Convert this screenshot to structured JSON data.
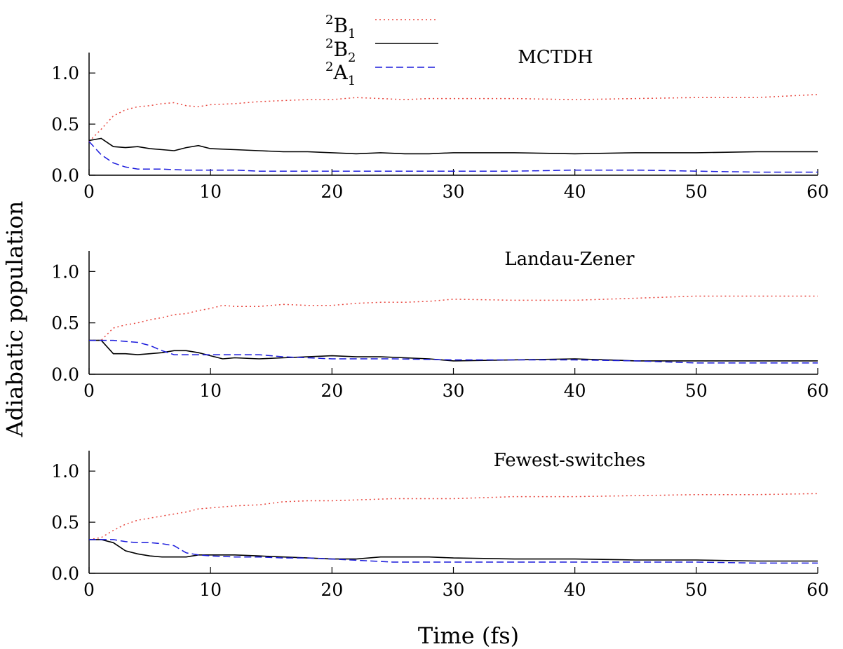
{
  "figure": {
    "ylabel": "Adiabatic population",
    "xlabel": "Time (fs)"
  },
  "legend": {
    "items": [
      {
        "sup": "2",
        "main": "B",
        "sub": "1",
        "color": "#e8473f",
        "dash": "dot"
      },
      {
        "sup": "2",
        "main": "B",
        "sub": "2",
        "color": "#000000",
        "dash": "solid"
      },
      {
        "sup": "2",
        "main": "A",
        "sub": "1",
        "color": "#1a1adc",
        "dash": "dash"
      }
    ]
  },
  "chart_data": [
    {
      "type": "line",
      "title": "MCTDH",
      "xlim": [
        0,
        60
      ],
      "ylim": [
        0,
        1.2
      ],
      "xticks": [
        0,
        10,
        20,
        30,
        40,
        50,
        60
      ],
      "yticks": [
        0.0,
        0.5,
        1.0
      ],
      "xtick_labels": [
        "0",
        "10",
        "20",
        "30",
        "40",
        "50",
        "60"
      ],
      "ytick_labels": [
        "0.0",
        "0.5",
        "1.0"
      ],
      "series": [
        {
          "legend_index": 0,
          "color": "#e8473f",
          "style": "dot",
          "x": [
            0,
            1,
            2,
            3,
            4,
            5,
            6,
            7,
            8,
            9,
            10,
            12,
            14,
            16,
            18,
            20,
            22,
            24,
            26,
            28,
            30,
            35,
            40,
            45,
            50,
            55,
            60
          ],
          "y": [
            0.33,
            0.45,
            0.58,
            0.64,
            0.67,
            0.68,
            0.7,
            0.71,
            0.68,
            0.67,
            0.69,
            0.7,
            0.72,
            0.73,
            0.74,
            0.74,
            0.76,
            0.75,
            0.74,
            0.75,
            0.75,
            0.75,
            0.74,
            0.75,
            0.76,
            0.76,
            0.79
          ]
        },
        {
          "legend_index": 1,
          "color": "#000000",
          "style": "solid",
          "x": [
            0,
            1,
            2,
            3,
            4,
            5,
            6,
            7,
            8,
            9,
            10,
            12,
            14,
            16,
            18,
            20,
            22,
            24,
            26,
            28,
            30,
            35,
            40,
            45,
            50,
            55,
            60
          ],
          "y": [
            0.34,
            0.36,
            0.28,
            0.27,
            0.28,
            0.26,
            0.25,
            0.24,
            0.27,
            0.29,
            0.26,
            0.25,
            0.24,
            0.23,
            0.23,
            0.22,
            0.21,
            0.22,
            0.21,
            0.21,
            0.22,
            0.22,
            0.21,
            0.22,
            0.22,
            0.23,
            0.23
          ]
        },
        {
          "legend_index": 2,
          "color": "#1a1adc",
          "style": "dash",
          "x": [
            0,
            1,
            2,
            3,
            4,
            5,
            6,
            8,
            10,
            12,
            14,
            16,
            18,
            20,
            25,
            30,
            35,
            40,
            45,
            50,
            55,
            60
          ],
          "y": [
            0.33,
            0.2,
            0.12,
            0.08,
            0.06,
            0.06,
            0.06,
            0.05,
            0.05,
            0.05,
            0.04,
            0.04,
            0.04,
            0.04,
            0.04,
            0.04,
            0.04,
            0.05,
            0.05,
            0.04,
            0.03,
            0.03
          ]
        }
      ]
    },
    {
      "type": "line",
      "title": "Landau-Zener",
      "xlim": [
        0,
        60
      ],
      "ylim": [
        0,
        1.2
      ],
      "xticks": [
        0,
        10,
        20,
        30,
        40,
        50,
        60
      ],
      "yticks": [
        0.0,
        0.5,
        1.0
      ],
      "xtick_labels": [
        "0",
        "10",
        "20",
        "30",
        "40",
        "50",
        "60"
      ],
      "ytick_labels": [
        "0.0",
        "0.5",
        "1.0"
      ],
      "series": [
        {
          "legend_index": 0,
          "color": "#e8473f",
          "style": "dot",
          "x": [
            0,
            1,
            2,
            3,
            4,
            5,
            6,
            7,
            8,
            9,
            10,
            11,
            12,
            14,
            16,
            18,
            20,
            22,
            24,
            26,
            28,
            30,
            35,
            40,
            45,
            50,
            55,
            60
          ],
          "y": [
            0.33,
            0.33,
            0.45,
            0.48,
            0.5,
            0.53,
            0.55,
            0.58,
            0.59,
            0.62,
            0.64,
            0.67,
            0.66,
            0.66,
            0.68,
            0.67,
            0.67,
            0.69,
            0.7,
            0.7,
            0.71,
            0.73,
            0.72,
            0.72,
            0.74,
            0.76,
            0.76,
            0.76
          ]
        },
        {
          "legend_index": 1,
          "color": "#000000",
          "style": "solid",
          "x": [
            0,
            1,
            2,
            3,
            4,
            5,
            6,
            7,
            8,
            9,
            10,
            11,
            12,
            14,
            16,
            18,
            20,
            22,
            24,
            26,
            28,
            30,
            35,
            40,
            45,
            50,
            55,
            60
          ],
          "y": [
            0.33,
            0.33,
            0.2,
            0.2,
            0.19,
            0.2,
            0.21,
            0.23,
            0.23,
            0.21,
            0.18,
            0.15,
            0.16,
            0.15,
            0.16,
            0.17,
            0.18,
            0.17,
            0.17,
            0.16,
            0.15,
            0.13,
            0.14,
            0.15,
            0.13,
            0.13,
            0.13,
            0.13
          ]
        },
        {
          "legend_index": 2,
          "color": "#1a1adc",
          "style": "dash",
          "x": [
            0,
            1,
            2,
            3,
            4,
            5,
            6,
            7,
            8,
            9,
            10,
            12,
            14,
            16,
            18,
            20,
            25,
            30,
            35,
            40,
            45,
            50,
            55,
            60
          ],
          "y": [
            0.33,
            0.33,
            0.33,
            0.32,
            0.31,
            0.28,
            0.23,
            0.19,
            0.19,
            0.19,
            0.19,
            0.19,
            0.19,
            0.17,
            0.16,
            0.15,
            0.15,
            0.14,
            0.14,
            0.14,
            0.13,
            0.11,
            0.11,
            0.11
          ]
        }
      ]
    },
    {
      "type": "line",
      "title": "Fewest-switches",
      "xlim": [
        0,
        60
      ],
      "ylim": [
        0,
        1.2
      ],
      "xticks": [
        0,
        10,
        20,
        30,
        40,
        50,
        60
      ],
      "yticks": [
        0.0,
        0.5,
        1.0
      ],
      "xtick_labels": [
        "0",
        "10",
        "20",
        "30",
        "40",
        "50",
        "60"
      ],
      "ytick_labels": [
        "0.0",
        "0.5",
        "1.0"
      ],
      "series": [
        {
          "legend_index": 0,
          "color": "#e8473f",
          "style": "dot",
          "x": [
            0,
            1,
            2,
            3,
            4,
            5,
            6,
            7,
            8,
            9,
            10,
            12,
            14,
            16,
            18,
            20,
            25,
            30,
            35,
            40,
            45,
            50,
            55,
            60
          ],
          "y": [
            0.33,
            0.35,
            0.42,
            0.48,
            0.52,
            0.54,
            0.56,
            0.58,
            0.6,
            0.63,
            0.64,
            0.66,
            0.67,
            0.7,
            0.71,
            0.71,
            0.73,
            0.73,
            0.75,
            0.75,
            0.76,
            0.77,
            0.77,
            0.78
          ]
        },
        {
          "legend_index": 1,
          "color": "#000000",
          "style": "solid",
          "x": [
            0,
            1,
            2,
            3,
            4,
            5,
            6,
            7,
            8,
            9,
            10,
            12,
            14,
            16,
            18,
            20,
            22,
            24,
            26,
            28,
            30,
            35,
            40,
            45,
            50,
            55,
            60
          ],
          "y": [
            0.33,
            0.33,
            0.3,
            0.22,
            0.19,
            0.17,
            0.16,
            0.16,
            0.16,
            0.18,
            0.18,
            0.18,
            0.17,
            0.16,
            0.15,
            0.14,
            0.14,
            0.16,
            0.16,
            0.16,
            0.15,
            0.14,
            0.14,
            0.13,
            0.13,
            0.12,
            0.12
          ]
        },
        {
          "legend_index": 2,
          "color": "#1a1adc",
          "style": "dash",
          "x": [
            0,
            1,
            2,
            3,
            4,
            5,
            6,
            7,
            8,
            9,
            10,
            12,
            14,
            16,
            18,
            20,
            25,
            30,
            35,
            40,
            45,
            50,
            55,
            60
          ],
          "y": [
            0.33,
            0.33,
            0.33,
            0.31,
            0.3,
            0.3,
            0.29,
            0.27,
            0.2,
            0.18,
            0.17,
            0.16,
            0.16,
            0.15,
            0.15,
            0.14,
            0.11,
            0.11,
            0.11,
            0.11,
            0.11,
            0.11,
            0.1,
            0.1
          ]
        }
      ]
    }
  ]
}
